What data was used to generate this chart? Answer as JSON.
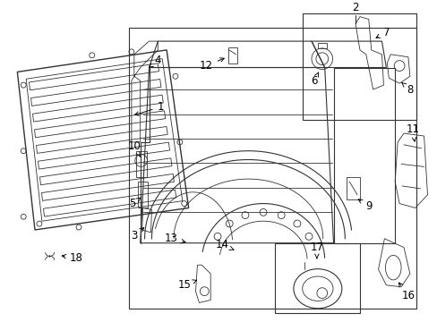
{
  "bg_color": "#ffffff",
  "line_color": "#333333",
  "label_color": "#000000",
  "lw_main": 1.0,
  "lw_thin": 0.6,
  "lw_med": 0.8,
  "fontsize": 8.5
}
